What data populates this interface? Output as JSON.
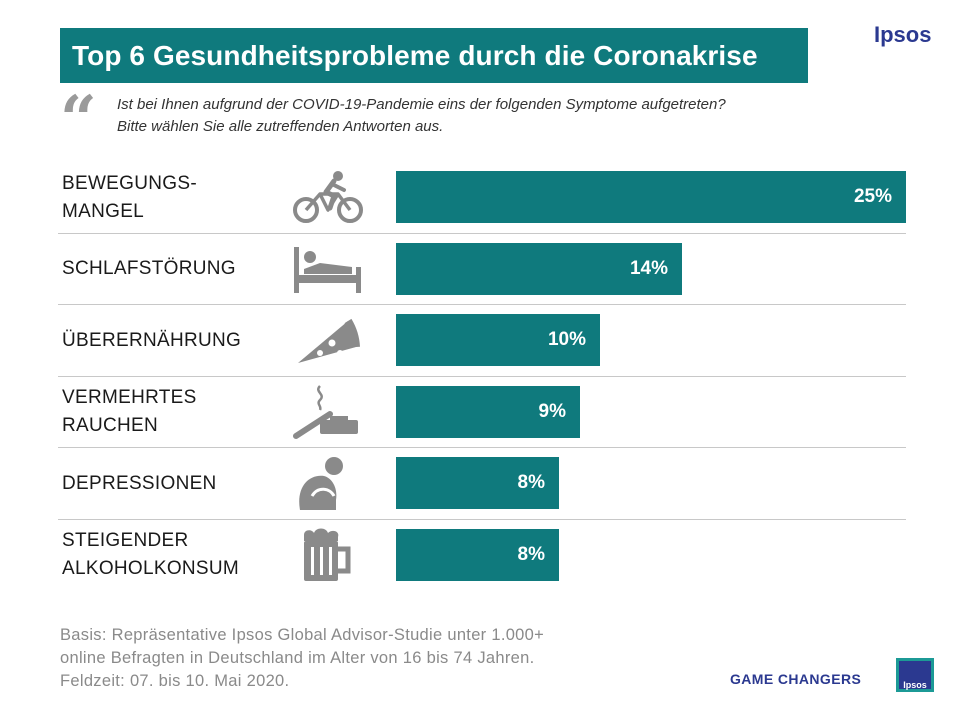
{
  "header": {
    "title": "Top 6 Gesundheitsprobleme durch die Coronakrise",
    "brand": "Ipsos",
    "quote_mark": "“",
    "question_line1": "Ist bei Ihnen aufgrund der COVID-19-Pandemie eins der folgenden Symptome aufgetreten?",
    "question_line2": "Bitte wählen Sie alle zutreffenden Antworten aus."
  },
  "chart_data": {
    "type": "bar",
    "orientation": "horizontal",
    "title": "Top 6 Gesundheitsprobleme durch die Coronakrise",
    "categories": [
      "BEWEGUNGSMANGEL",
      "SCHLAFSTÖRUNG",
      "ÜBERERNÄHRUNG",
      "VERMEHRTES RAUCHEN",
      "DEPRESSIONEN",
      "STEIGENDER ALKOHOLKONSUM"
    ],
    "label_lines": [
      [
        "BEWEGUNGS-",
        "MANGEL"
      ],
      [
        "SCHLAFSTÖRUNG"
      ],
      [
        "ÜBERERNÄHRUNG"
      ],
      [
        "VERMEHRTES",
        "RAUCHEN"
      ],
      [
        "DEPRESSIONEN"
      ],
      [
        "STEIGENDER",
        "ALKOHOLKONSUM"
      ]
    ],
    "values": [
      25,
      14,
      10,
      9,
      8,
      8
    ],
    "value_labels": [
      "25%",
      "14%",
      "10%",
      "9%",
      "8%",
      "8%"
    ],
    "icons": [
      "bicycle-icon",
      "bed-icon",
      "pizza-icon",
      "cigarette-icon",
      "depressed-person-icon",
      "beer-mug-icon"
    ],
    "xlim": [
      0,
      25
    ],
    "unit": "%",
    "bar_color": "#0f7a7d"
  },
  "footer": {
    "basis_line1": "Basis: Repräsentative Ipsos Global Advisor-Studie unter 1.000+",
    "basis_line2": "online Befragten in Deutschland im Alter von 16 bis 74 Jahren.",
    "basis_line3": "Feldzeit: 07. bis 10. Mai 2020.",
    "tagline": "GAME CHANGERS",
    "logo_text": "Ipsos"
  },
  "colors": {
    "teal": "#0f7a7d",
    "brand_blue": "#2b3990",
    "icon_gray": "#8a8a8a"
  }
}
